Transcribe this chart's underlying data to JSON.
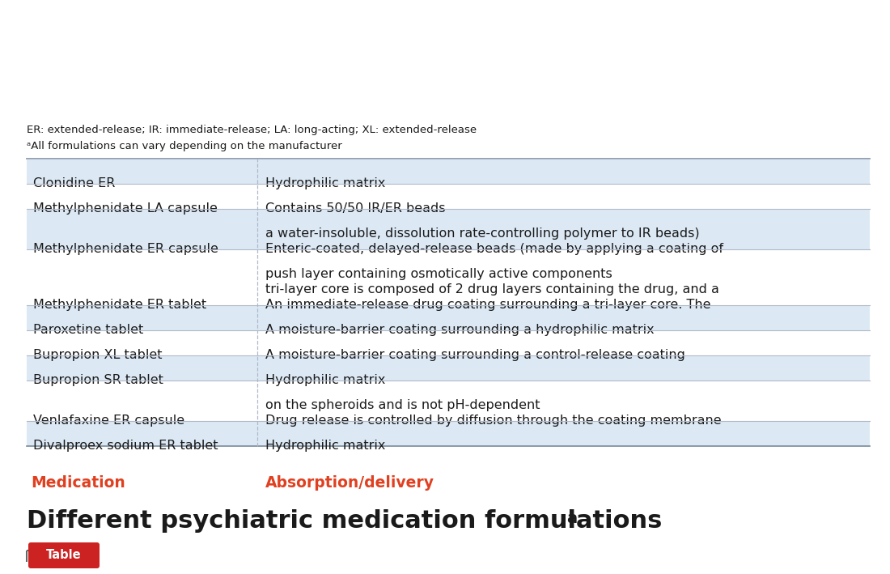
{
  "title": "Different psychiatric medication formulations",
  "title_superscript": "a",
  "tag_label": "Table",
  "tag_bg": "#cc2222",
  "tag_text_color": "#ffffff",
  "col1_header": "Medication",
  "col2_header": "Absorption/delivery",
  "header_color": "#e04020",
  "rows": [
    [
      "Divalproex sodium ER tablet",
      "Hydrophilic matrix"
    ],
    [
      "Venlafaxine ER capsule",
      "Drug release is controlled by diffusion through the coating membrane\non the spheroids and is not pH-dependent"
    ],
    [
      "Bupropion SR tablet",
      "Hydrophilic matrix"
    ],
    [
      "Bupropion XL tablet",
      "A moisture-barrier coating surrounding a control-release coating"
    ],
    [
      "Paroxetine tablet",
      "A moisture-barrier coating surrounding a hydrophilic matrix"
    ],
    [
      "Methylphenidate ER tablet",
      "An immediate-release drug coating surrounding a tri-layer core. The\ntri-layer core is composed of 2 drug layers containing the drug, and a\npush layer containing osmotically active components"
    ],
    [
      "Methylphenidate ER capsule",
      "Enteric-coated, delayed-release beads (made by applying a coating of\na water-insoluble, dissolution rate-controlling polymer to IR beads)"
    ],
    [
      "Methylphenidate LA capsule",
      "Contains 50/50 IR/ER beads"
    ],
    [
      "Clonidine ER",
      "Hydrophilic matrix"
    ]
  ],
  "row_line_counts": [
    1,
    2,
    1,
    1,
    1,
    3,
    2,
    1,
    1
  ],
  "row_shading_odd": "#dce9f5",
  "row_shading_even": "#ffffff",
  "divider_color": "#b0b8c8",
  "border_color": "#7a8a9a",
  "footnote1": "ᵃAll formulations can vary depending on the manufacturer",
  "footnote2": "ER: extended-release; IR: immediate-release; LA: long-acting; XL: extended-release",
  "text_color": "#1a1a1a",
  "bg_color": "#ffffff",
  "font_size": 11.5,
  "header_font_size": 13.5,
  "title_font_size": 22,
  "tag_font_size": 10.5
}
